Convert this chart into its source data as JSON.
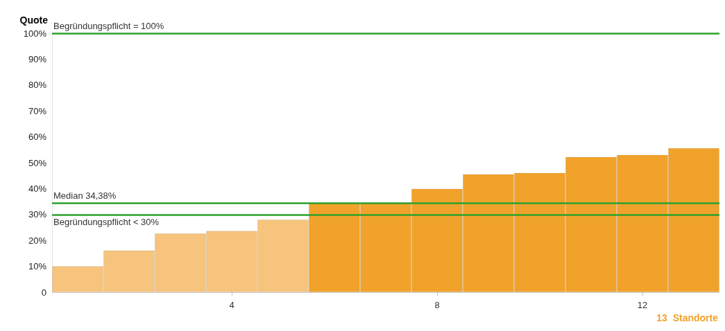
{
  "chart_data": {
    "type": "bar",
    "ylabel": "Quote",
    "xlabel": "13  Standorte",
    "categories": [
      null,
      null,
      null,
      "4",
      null,
      null,
      null,
      "8",
      null,
      null,
      null,
      "12",
      null
    ],
    "values": [
      10.1,
      16.2,
      22.7,
      23.7,
      28.1,
      34.38,
      34.38,
      40,
      45.6,
      46.1,
      52.3,
      53.1,
      55.7
    ],
    "colors": [
      "#f6c47d",
      "#f6c47d",
      "#f6c47d",
      "#f6c47d",
      "#f6c47d",
      "#f1a22b",
      "#f1a22b",
      "#f1a22b",
      "#f1a22b",
      "#f1a22b",
      "#f1a22b",
      "#f1a22b",
      "#f1a22b"
    ],
    "ylim": [
      0,
      100
    ],
    "yticks": [
      {
        "value": 0,
        "label": "0"
      },
      {
        "value": 10,
        "label": "10%"
      },
      {
        "value": 20,
        "label": "20%"
      },
      {
        "value": 30,
        "label": "30%"
      },
      {
        "value": 40,
        "label": "40%"
      },
      {
        "value": 50,
        "label": "50%"
      },
      {
        "value": 60,
        "label": "60%"
      },
      {
        "value": 70,
        "label": "70%"
      },
      {
        "value": 80,
        "label": "80%"
      },
      {
        "value": 90,
        "label": "90%"
      },
      {
        "value": 100,
        "label": "100%"
      }
    ],
    "ref_lines": [
      {
        "axis": "y",
        "value": 100,
        "label": "Begründungspflicht = 100%",
        "color": "#2ca02c"
      },
      {
        "axis": "y",
        "value": 34.38,
        "label": "Median 34,38%",
        "color": "#2ca02c"
      },
      {
        "axis": "y",
        "value": 30,
        "label": "Begründungspflicht < 30%",
        "color": "#2ca02c"
      }
    ]
  }
}
